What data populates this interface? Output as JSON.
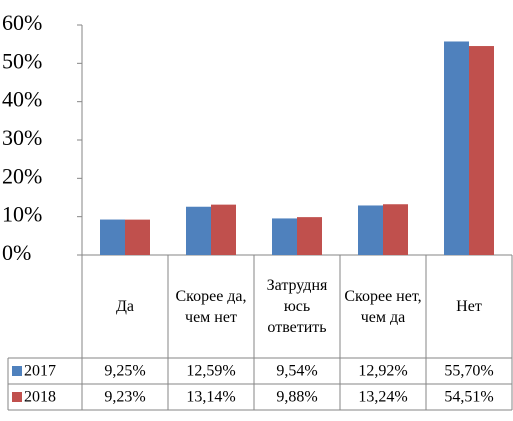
{
  "chart_data": {
    "type": "bar",
    "categories": [
      "Да",
      "Скорее да, чем нет",
      "Затрудняюсь ответить",
      "Скорее нет, чем да",
      "Нет"
    ],
    "series": [
      {
        "name": "2017",
        "color": "#4f81bd",
        "values": [
          9.25,
          12.59,
          9.54,
          12.92,
          55.7
        ],
        "value_labels": [
          "9,25%",
          "12,59%",
          "9,54%",
          "12,92%",
          "55,70%"
        ]
      },
      {
        "name": "2018",
        "color": "#c0504d",
        "values": [
          9.23,
          13.14,
          9.88,
          13.24,
          54.51
        ],
        "value_labels": [
          "9,23%",
          "13,14%",
          "9,88%",
          "13,24%",
          "54,51%"
        ]
      }
    ],
    "ylim": [
      0,
      60
    ],
    "yticks": [
      {
        "value": 0,
        "label": "0%"
      },
      {
        "value": 10,
        "label": "10%"
      },
      {
        "value": 20,
        "label": "20%"
      },
      {
        "value": 30,
        "label": "30%"
      },
      {
        "value": 40,
        "label": "40%"
      },
      {
        "value": 50,
        "label": "50%"
      },
      {
        "value": 60,
        "label": "60%"
      }
    ],
    "grid": false
  }
}
